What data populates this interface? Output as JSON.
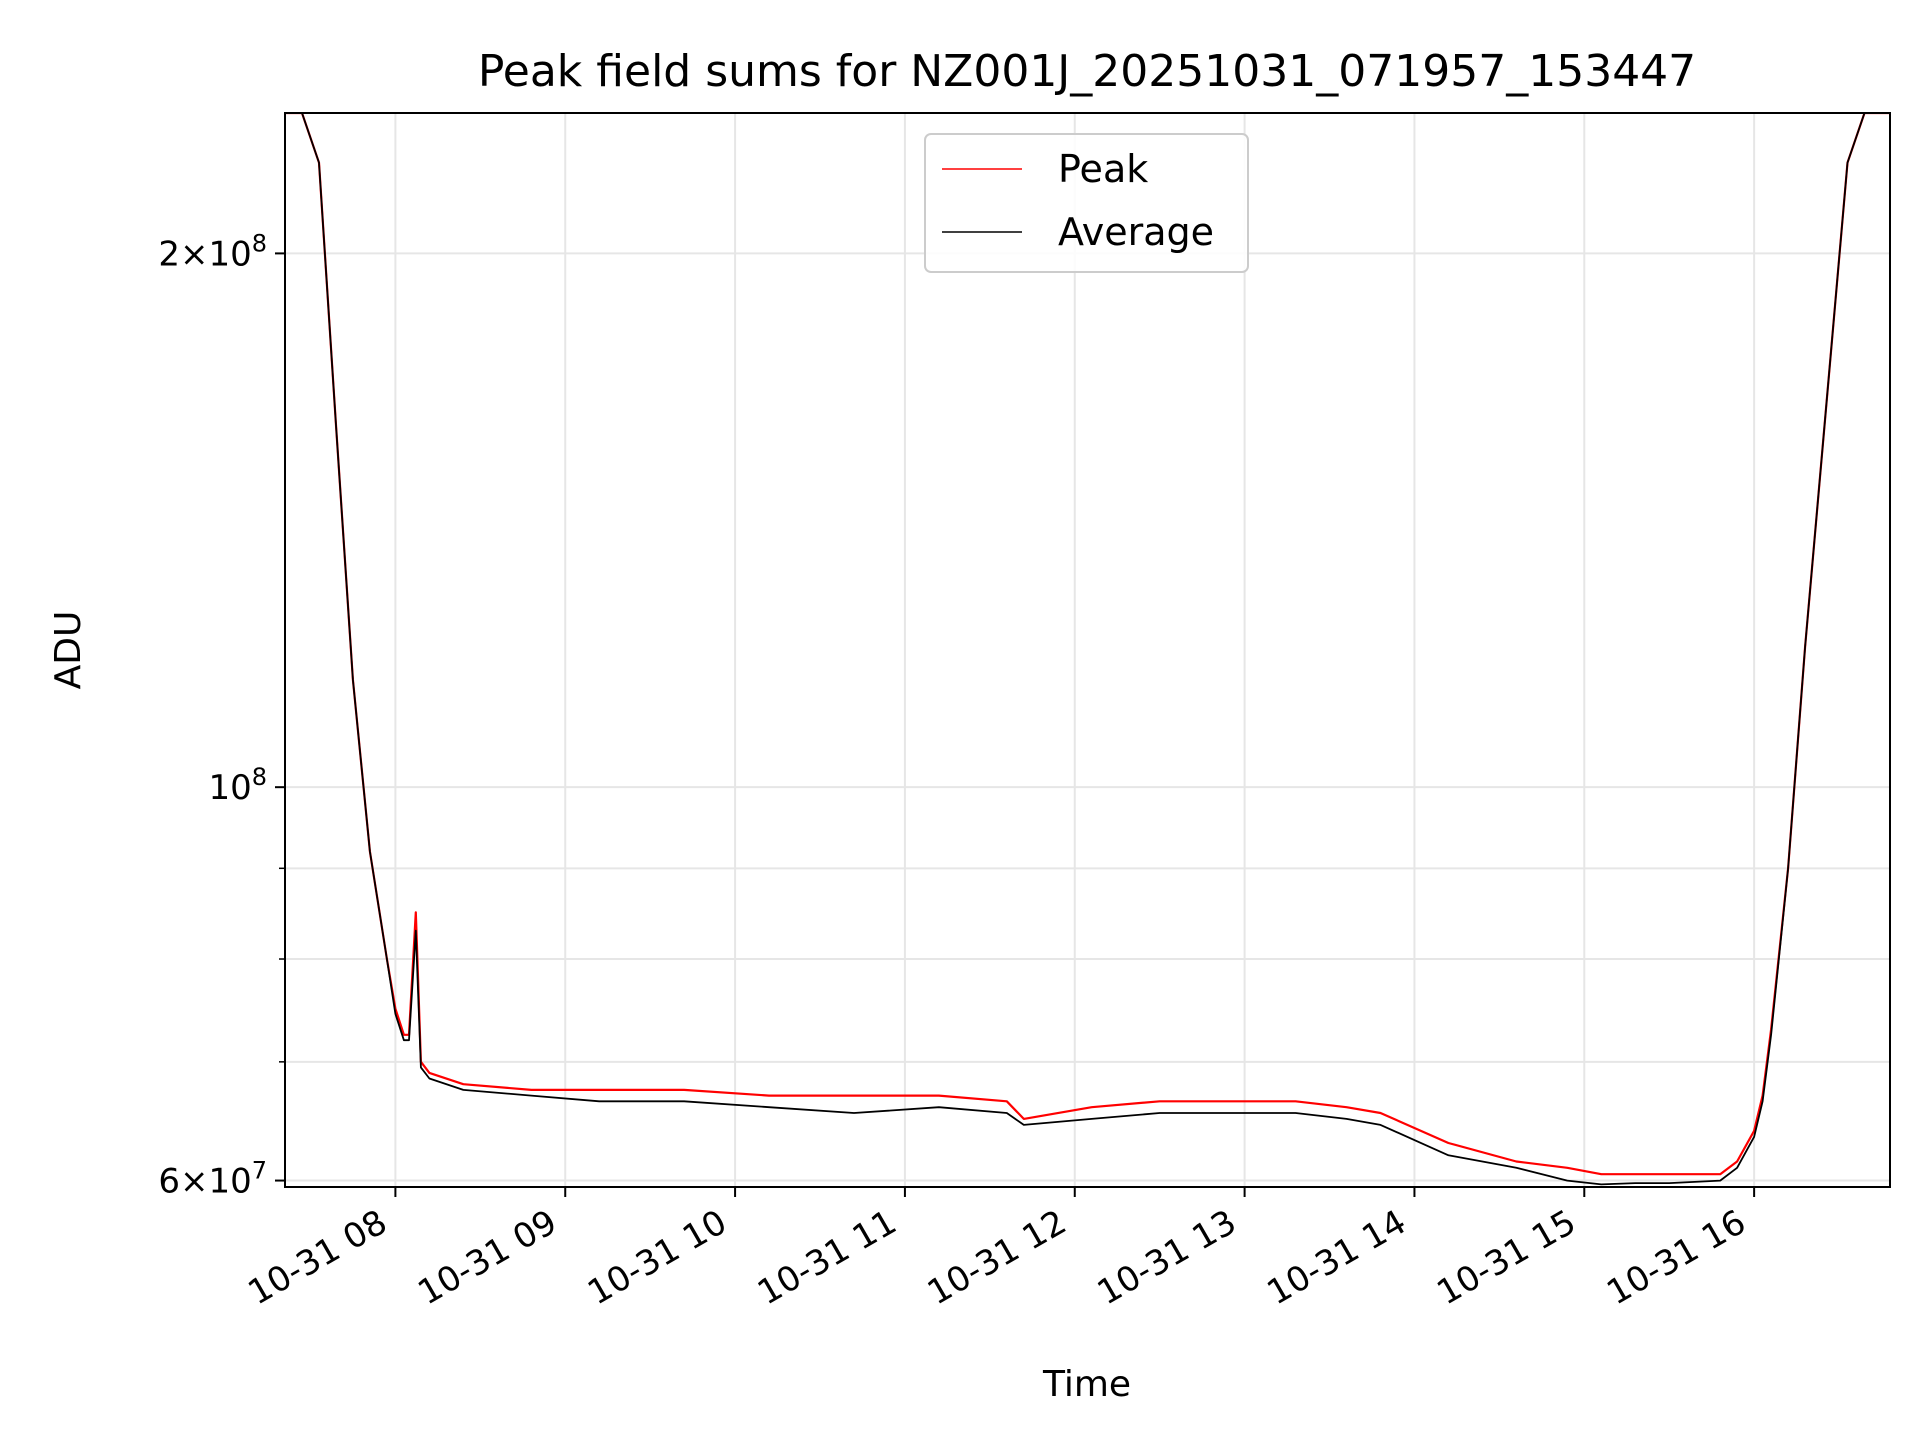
{
  "chart_data": {
    "type": "line",
    "title": "Peak field sums for NZ001J_20251031_071957_153447",
    "xlabel": "Time",
    "ylabel": "ADU",
    "yscale": "log",
    "xlim": [
      7.35,
      16.8
    ],
    "ylim": [
      59500000,
      240000000
    ],
    "grid": true,
    "legend_position": "top-center",
    "x_ticks": [
      8,
      9,
      10,
      11,
      12,
      13,
      14,
      15,
      16
    ],
    "x_tick_labels": [
      "10-31 08",
      "10-31 09",
      "10-31 10",
      "10-31 11",
      "10-31 12",
      "10-31 13",
      "10-31 14",
      "10-31 15",
      "10-31 16"
    ],
    "y_major_ticks": [
      {
        "value": 200000000,
        "mantissa": "2",
        "exponent": "8"
      },
      {
        "value": 100000000,
        "mantissa": "",
        "exponent": "8"
      },
      {
        "value": 60000000,
        "mantissa": "6",
        "exponent": "7"
      }
    ],
    "y_minor_ticks": [
      70000000,
      80000000,
      90000000
    ],
    "x_times_hours": [
      7.35,
      7.45,
      7.55,
      7.65,
      7.75,
      7.85,
      7.95,
      8.0,
      8.05,
      8.08,
      8.12,
      8.15,
      8.2,
      8.4,
      8.8,
      9.2,
      9.7,
      10.2,
      10.7,
      11.2,
      11.6,
      11.7,
      12.1,
      12.5,
      12.9,
      13.3,
      13.6,
      13.8,
      14.2,
      14.6,
      14.9,
      15.1,
      15.3,
      15.5,
      15.8,
      15.9,
      16.0,
      16.05,
      16.1,
      16.2,
      16.3,
      16.45,
      16.55,
      16.65,
      16.8
    ],
    "series": [
      {
        "name": "Peak",
        "color": "#ff0000",
        "values": [
          240000000,
          240000000,
          225000000,
          160000000,
          115000000,
          92000000,
          80000000,
          75000000,
          72500000,
          72500000,
          85000000,
          70000000,
          69000000,
          68000000,
          67500000,
          67500000,
          67500000,
          67000000,
          67000000,
          67000000,
          66500000,
          65000000,
          66000000,
          66500000,
          66500000,
          66500000,
          66000000,
          65500000,
          63000000,
          61500000,
          61000000,
          60500000,
          60500000,
          60500000,
          60500000,
          61500000,
          64000000,
          67000000,
          73000000,
          90000000,
          120000000,
          175000000,
          225000000,
          240000000,
          240000000
        ]
      },
      {
        "name": "Average",
        "color": "#000000",
        "values": [
          240000000,
          240000000,
          225000000,
          160000000,
          115000000,
          92000000,
          80000000,
          74500000,
          72000000,
          72000000,
          83000000,
          69500000,
          68500000,
          67500000,
          67000000,
          66500000,
          66500000,
          66000000,
          65500000,
          66000000,
          65500000,
          64500000,
          65000000,
          65500000,
          65500000,
          65500000,
          65000000,
          64500000,
          62000000,
          61000000,
          60000000,
          59700000,
          59800000,
          59800000,
          60000000,
          61000000,
          63500000,
          66500000,
          72500000,
          90000000,
          120000000,
          175000000,
          225000000,
          240000000,
          240000000
        ]
      }
    ]
  }
}
